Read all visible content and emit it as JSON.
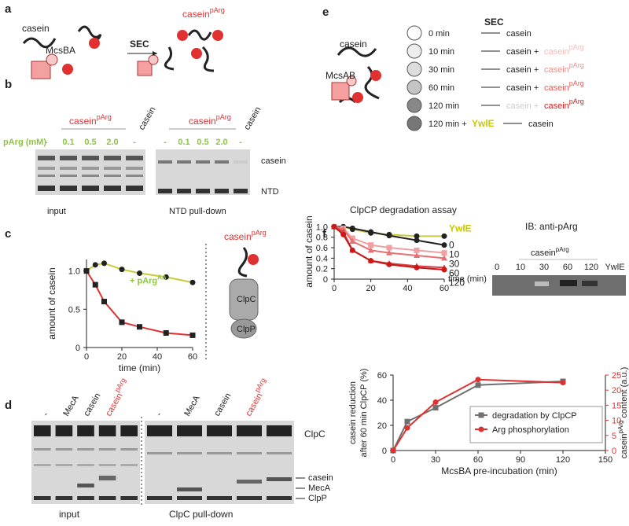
{
  "panels": {
    "letters": [
      "a",
      "b",
      "c",
      "d",
      "e",
      "f"
    ],
    "a": {
      "casein": "casein",
      "enzyme": "McsBA",
      "sec": "SEC",
      "product": "casein",
      "product_sup": "pArg"
    },
    "b": {
      "header": "casein",
      "header_sup": "pArg",
      "control": "casein",
      "param": "pArg (mM)",
      "lanes": [
        "-",
        "0.1",
        "0.5",
        "2.0"
      ],
      "band_labels": [
        "casein",
        "NTD"
      ],
      "gels": [
        "input",
        "NTD pull-down"
      ]
    },
    "c": {
      "label": "casein",
      "label_sup": "pArg",
      "clpc": "ClpC",
      "clpp": "ClpP"
    },
    "d": {
      "lanes": [
        "-",
        "MecA",
        "casein",
        "casein"
      ],
      "lane_sup": "pArg",
      "band_labels": [
        "ClpC",
        "casein",
        "MecA",
        "ClpP"
      ],
      "gels": [
        "input",
        "ClpC pull-down"
      ]
    },
    "e": {
      "casein": "casein",
      "enzyme": "McsAB",
      "sec": "SEC",
      "rows": [
        {
          "time": "0 min",
          "result": "casein"
        },
        {
          "time": "10 min",
          "result": "casein +",
          "product": "casein",
          "product_sup": "pArg",
          "color": "#f5bcbc"
        },
        {
          "time": "30 min",
          "result": "casein +",
          "product": "casein",
          "product_sup": "pArg",
          "color": "#ef8f8f"
        },
        {
          "time": "60 min",
          "result": "casein +",
          "product": "casein",
          "product_sup": "pArg",
          "color": "#e85a5a"
        },
        {
          "time": "120 min",
          "result": "casein +",
          "product": "casein",
          "product_sup": "pArg",
          "color": "#d42020"
        },
        {
          "time": "120 min +",
          "extra": "YwlE",
          "result": "casein"
        }
      ]
    },
    "f_blot": {
      "title": "IB: anti-pArg",
      "header": "casein",
      "header_sup": "pArg",
      "lanes": [
        "0",
        "10",
        "30",
        "60",
        "120",
        "YwlE"
      ]
    }
  },
  "chart_data": [
    {
      "type": "line",
      "xlabel": "time (min)",
      "ylabel": "amount of casein",
      "x": [
        0,
        5,
        10,
        20,
        30,
        45,
        60
      ],
      "xlim": [
        0,
        60
      ],
      "xticks": [
        0,
        20,
        40,
        60
      ],
      "ylim": [
        0,
        1.15
      ],
      "yticks": [
        0,
        0.5,
        {
          "value": 1,
          "label": "1.0"
        }
      ],
      "series": [
        {
          "name": "+ pArg",
          "name_sup": "AA",
          "color": "#c8cc3a",
          "marker": "circle",
          "values": [
            1.0,
            1.08,
            1.1,
            1.02,
            0.97,
            0.92,
            0.85
          ]
        },
        {
          "color": "#e03030",
          "marker": "square",
          "values": [
            1.0,
            0.82,
            0.6,
            0.33,
            0.27,
            0.19,
            0.16
          ]
        }
      ]
    },
    {
      "type": "line",
      "title": "ClpCP degradation assay",
      "xlabel": "time (min)",
      "ylabel": "amount of casein",
      "x": [
        0,
        5,
        10,
        20,
        30,
        45,
        60
      ],
      "xlim": [
        0,
        60
      ],
      "xticks": [
        0,
        20,
        40,
        60
      ],
      "ylim": [
        0,
        1.05
      ],
      "yticks": [
        0,
        0.2,
        0.4,
        0.6,
        0.8,
        {
          "value": 1,
          "label": "1.0"
        }
      ],
      "series": [
        {
          "name": "YwlE",
          "color": "#c8cc3a",
          "marker": "circle",
          "values": [
            1.0,
            1.0,
            0.95,
            0.88,
            0.85,
            0.82,
            0.82
          ]
        },
        {
          "name": "0",
          "color": "#222222",
          "marker": "circle",
          "values": [
            1.0,
            1.0,
            0.97,
            0.9,
            0.83,
            0.74,
            0.65
          ]
        },
        {
          "name": "10",
          "color": "#f0a0a0",
          "marker": "square",
          "values": [
            1.0,
            0.97,
            0.78,
            0.65,
            0.6,
            0.55,
            0.5
          ]
        },
        {
          "name": "30",
          "color": "#e87070",
          "marker": "triangle",
          "values": [
            1.0,
            0.95,
            0.72,
            0.55,
            0.5,
            0.45,
            0.4
          ]
        },
        {
          "name": "60",
          "color": "#d84040",
          "marker": "triangle",
          "values": [
            1.0,
            0.9,
            0.55,
            0.35,
            0.3,
            0.25,
            0.22
          ]
        },
        {
          "name": "120",
          "color": "#c81818",
          "marker": "circle",
          "values": [
            1.0,
            0.85,
            0.55,
            0.35,
            0.28,
            0.22,
            0.18
          ]
        }
      ]
    },
    {
      "type": "line",
      "xlabel": "McsBA pre-incubation (min)",
      "ylabel": [
        "casein reduction",
        "after 60 min ClpCP (%)"
      ],
      "y2label": [
        "casein",
        "pArg",
        "content (a.u.)"
      ],
      "x": [
        0,
        10,
        30,
        60,
        120
      ],
      "xlim": [
        0,
        150
      ],
      "xticks": [
        0,
        30,
        60,
        90,
        120,
        150
      ],
      "ylim": [
        0,
        60
      ],
      "yticks": [
        0,
        20,
        40,
        60
      ],
      "y2lim": [
        0,
        25
      ],
      "y2ticks": [
        0,
        5,
        10,
        15,
        20,
        25
      ],
      "legend": "lower right",
      "series": [
        {
          "name": "degradation by ClpCP",
          "color": "#707070",
          "marker": "square",
          "values": [
            0,
            23,
            34,
            52,
            55
          ]
        },
        {
          "name": "Arg phosphorylation",
          "color": "#e03030",
          "marker": "circle",
          "axis": "y2",
          "values": [
            0,
            7.5,
            16,
            23.5,
            22.5
          ]
        }
      ]
    }
  ]
}
